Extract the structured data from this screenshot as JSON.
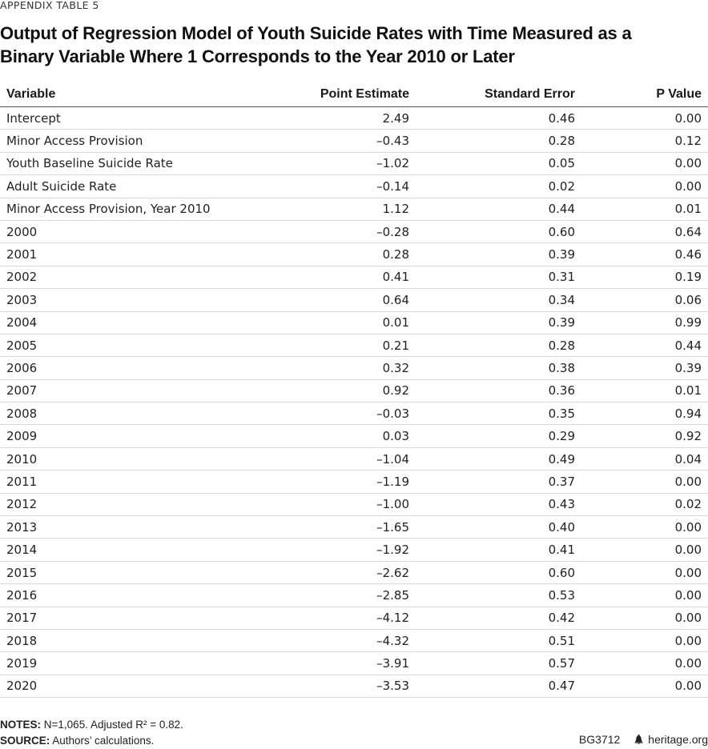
{
  "kicker": "APPENDIX TABLE 5",
  "title": "Output of Regression Model of Youth Suicide Rates with Time Measured as a Binary Variable Where 1 Corresponds to the Year 2010 or Later",
  "columns": [
    "Variable",
    "Point Estimate",
    "Standard Error",
    "P Value"
  ],
  "rows": [
    [
      "Intercept",
      "2.49",
      "0.46",
      "0.00"
    ],
    [
      "Minor Access Provision",
      "–0.43",
      "0.28",
      "0.12"
    ],
    [
      "Youth Baseline Suicide Rate",
      "–1.02",
      "0.05",
      "0.00"
    ],
    [
      "Adult Suicide Rate",
      "–0.14",
      "0.02",
      "0.00"
    ],
    [
      "Minor Access Provision, Year 2010",
      "1.12",
      "0.44",
      "0.01"
    ],
    [
      "2000",
      "–0.28",
      "0.60",
      "0.64"
    ],
    [
      "2001",
      "0.28",
      "0.39",
      "0.46"
    ],
    [
      "2002",
      "0.41",
      "0.31",
      "0.19"
    ],
    [
      "2003",
      "0.64",
      "0.34",
      "0.06"
    ],
    [
      "2004",
      "0.01",
      "0.39",
      "0.99"
    ],
    [
      "2005",
      "0.21",
      "0.28",
      "0.44"
    ],
    [
      "2006",
      "0.32",
      "0.38",
      "0.39"
    ],
    [
      "2007",
      "0.92",
      "0.36",
      "0.01"
    ],
    [
      "2008",
      "–0.03",
      "0.35",
      "0.94"
    ],
    [
      "2009",
      "0.03",
      "0.29",
      "0.92"
    ],
    [
      "2010",
      "–1.04",
      "0.49",
      "0.04"
    ],
    [
      "2011",
      "–1.19",
      "0.37",
      "0.00"
    ],
    [
      "2012",
      "–1.00",
      "0.43",
      "0.02"
    ],
    [
      "2013",
      "–1.65",
      "0.40",
      "0.00"
    ],
    [
      "2014",
      "–1.92",
      "0.41",
      "0.00"
    ],
    [
      "2015",
      "–2.62",
      "0.60",
      "0.00"
    ],
    [
      "2016",
      "–2.85",
      "0.53",
      "0.00"
    ],
    [
      "2017",
      "–4.12",
      "0.42",
      "0.00"
    ],
    [
      "2018",
      "–4.32",
      "0.51",
      "0.00"
    ],
    [
      "2019",
      "–3.91",
      "0.57",
      "0.00"
    ],
    [
      "2020",
      "–3.53",
      "0.47",
      "0.00"
    ]
  ],
  "notes": {
    "notes_label": "NOTES:",
    "notes_text": "N=1,065. Adjusted R² = 0.82.",
    "source_label": "SOURCE:",
    "source_text": "Authors’ calculations."
  },
  "brand": {
    "code": "BG3712",
    "icon": "liberty-bell-icon",
    "site": "heritage.org"
  }
}
